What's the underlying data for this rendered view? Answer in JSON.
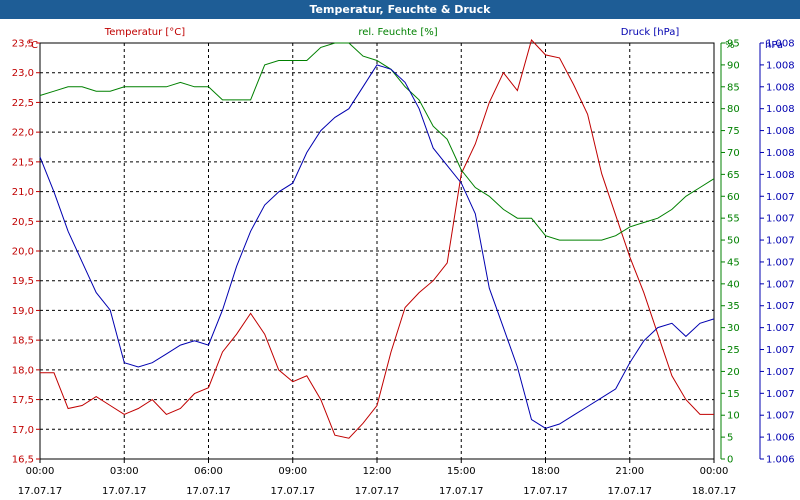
{
  "window": {
    "title": "Temperatur, Feuchte & Druck"
  },
  "chart_data": {
    "type": "line",
    "title": "Temperatur, Feuchte & Druck",
    "grid": true,
    "x_ticks": [
      {
        "time": "00:00",
        "date": "17.07.17"
      },
      {
        "time": "03:00",
        "date": "17.07.17"
      },
      {
        "time": "06:00",
        "date": "17.07.17"
      },
      {
        "time": "09:00",
        "date": "17.07.17"
      },
      {
        "time": "12:00",
        "date": "17.07.17"
      },
      {
        "time": "15:00",
        "date": "17.07.17"
      },
      {
        "time": "18:00",
        "date": "17.07.17"
      },
      {
        "time": "21:00",
        "date": "17.07.17"
      },
      {
        "time": "00:00",
        "date": "18.07.17"
      }
    ],
    "colors": {
      "temperature": "#c00000",
      "humidity": "#008000",
      "pressure": "#0000b0"
    },
    "axes": {
      "temperature": {
        "label": "Temperatur [°C]",
        "unit": "°C",
        "min": 16.5,
        "max": 23.5,
        "ticks": [
          "23,5",
          "23,0",
          "22,5",
          "22,0",
          "21,5",
          "21,0",
          "20,5",
          "20,0",
          "19,5",
          "19,0",
          "18,5",
          "18,0",
          "17,5",
          "17,0",
          "16,5"
        ]
      },
      "humidity": {
        "label": "rel. Feuchte [%]",
        "unit": "%",
        "min": 0,
        "max": 95,
        "ticks": [
          "95",
          "90",
          "85",
          "80",
          "75",
          "70",
          "65",
          "60",
          "55",
          "50",
          "45",
          "40",
          "35",
          "30",
          "25",
          "20",
          "15",
          "10",
          "5",
          "0"
        ]
      },
      "pressure": {
        "label": "Druck [hPa]",
        "unit": "hPa",
        "ticks": [
          "1.008",
          "1.008",
          "1.008",
          "1.008",
          "1.008",
          "1.008",
          "1.008",
          "1.007",
          "1.007",
          "1.007",
          "1.007",
          "1.007",
          "1.007",
          "1.007",
          "1.007",
          "1.007",
          "1.007",
          "1.007",
          "1.006",
          "1.006"
        ]
      }
    },
    "series": [
      {
        "name": "Temperatur [°C]",
        "axis": "temperature",
        "x": [
          0,
          0.5,
          1,
          1.5,
          2,
          2.5,
          3,
          3.5,
          4,
          4.5,
          5,
          5.5,
          6,
          6.5,
          7,
          7.5,
          8,
          8.5,
          9,
          9.5,
          10,
          10.5,
          11,
          11.5,
          12,
          12.5,
          13,
          13.5,
          14,
          14.5,
          15,
          15.5,
          16,
          16.5,
          17,
          17.5,
          18,
          18.5,
          19,
          19.5,
          20,
          20.5,
          21,
          21.5,
          22,
          22.5,
          23,
          23.5,
          24
        ],
        "values": [
          17.95,
          17.95,
          17.35,
          17.4,
          17.55,
          17.4,
          17.25,
          17.35,
          17.5,
          17.25,
          17.35,
          17.6,
          17.7,
          18.3,
          18.6,
          18.95,
          18.6,
          18.0,
          17.8,
          17.9,
          17.5,
          16.9,
          16.85,
          17.1,
          17.4,
          18.3,
          19.05,
          19.3,
          19.5,
          19.8,
          21.3,
          21.8,
          22.5,
          23.0,
          22.7,
          23.55,
          23.3,
          23.25,
          22.8,
          22.3,
          21.3,
          20.6,
          19.9,
          19.3,
          18.6,
          17.9,
          17.5,
          17.25,
          17.25
        ]
      },
      {
        "name": "rel. Feuchte [%]",
        "axis": "humidity",
        "x": [
          0,
          0.5,
          1,
          1.5,
          2,
          2.5,
          3,
          3.5,
          4,
          4.5,
          5,
          5.5,
          6,
          6.5,
          7,
          7.5,
          8,
          8.5,
          9,
          9.5,
          10,
          10.5,
          11,
          11.5,
          12,
          12.5,
          13,
          13.5,
          14,
          14.5,
          15,
          15.5,
          16,
          16.5,
          17,
          17.5,
          18,
          18.5,
          19,
          19.5,
          20,
          20.5,
          21,
          21.5,
          22,
          22.5,
          23,
          23.5,
          24
        ],
        "values": [
          83,
          84,
          85,
          85,
          84,
          84,
          85,
          85,
          85,
          85,
          86,
          85,
          85,
          82,
          82,
          82,
          90,
          91,
          91,
          91,
          94,
          95,
          95,
          92,
          91,
          89,
          85,
          82,
          76,
          73,
          66,
          62,
          60,
          57,
          55,
          55,
          51,
          50,
          50,
          50,
          50,
          51,
          53,
          54,
          55,
          57,
          60,
          62,
          64
        ]
      },
      {
        "name": "Druck [hPa]",
        "axis": "pressure",
        "x": [
          0,
          0.5,
          1,
          1.5,
          2,
          2.5,
          3,
          3.5,
          4,
          4.5,
          5,
          5.5,
          6,
          6.5,
          7,
          7.5,
          8,
          8.5,
          9,
          9.5,
          10,
          10.5,
          11,
          11.5,
          12,
          12.5,
          13,
          13.5,
          14,
          14.5,
          15,
          15.5,
          16,
          16.5,
          17,
          17.5,
          18,
          18.5,
          19,
          19.5,
          20,
          20.5,
          21,
          21.5,
          22,
          22.5,
          23,
          23.5,
          24
        ],
        "values": [
          69,
          61,
          52,
          45,
          38,
          34,
          22,
          21,
          22,
          24,
          26,
          27,
          26,
          34,
          44,
          52,
          58,
          61,
          63,
          70,
          75,
          78,
          80,
          85,
          90,
          89,
          86,
          80,
          71,
          67,
          63,
          56,
          39,
          30,
          21,
          9,
          7,
          8,
          10,
          12,
          14,
          16,
          22,
          27,
          30,
          31,
          28,
          31,
          32
        ]
      }
    ]
  }
}
